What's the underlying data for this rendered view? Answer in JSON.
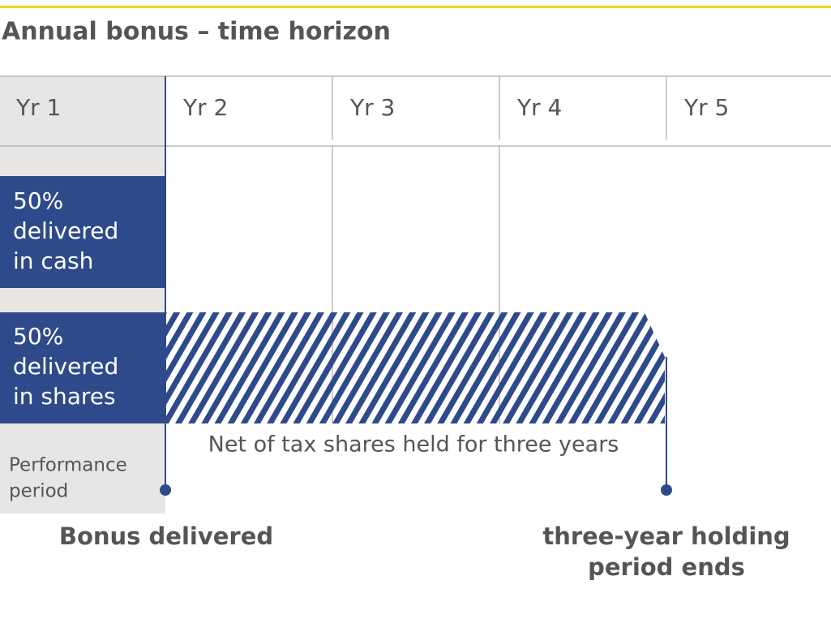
{
  "header": {
    "title": "Annual bonus – time horizon"
  },
  "columns": [
    "Yr 1",
    "Yr 2",
    "Yr 3",
    "Yr 4",
    "Yr 5"
  ],
  "cash_box": {
    "lines": [
      "50%",
      "delivered",
      "in cash"
    ]
  },
  "shares_box": {
    "lines": [
      "50%",
      "delivered",
      "in shares"
    ]
  },
  "holding_label": "Net of tax shares held for three years",
  "performance_period": {
    "lines": [
      "Performance",
      "period"
    ]
  },
  "markers": [
    {
      "lines": [
        "Bonus delivered"
      ]
    },
    {
      "lines": [
        "three-year holding",
        "period ends"
      ]
    }
  ]
}
